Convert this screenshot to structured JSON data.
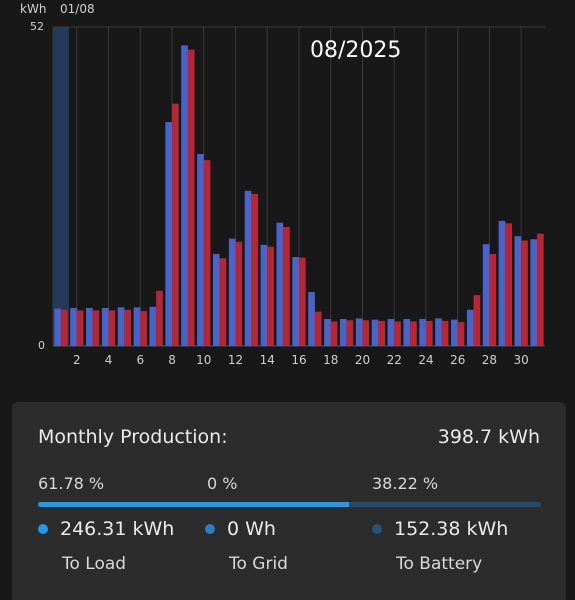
{
  "header": {
    "unit": "kWh",
    "date": "01/08",
    "period": "08/2025"
  },
  "chart_data": {
    "type": "bar",
    "ylim": [
      0,
      52
    ],
    "y_ticks": [
      "52",
      "0"
    ],
    "x_tick_labels": [
      "2",
      "4",
      "6",
      "8",
      "10",
      "12",
      "14",
      "16",
      "18",
      "20",
      "22",
      "24",
      "26",
      "28",
      "30"
    ],
    "categories": [
      "1",
      "2",
      "3",
      "4",
      "5",
      "6",
      "7",
      "8",
      "9",
      "10",
      "11",
      "12",
      "13",
      "14",
      "15",
      "16",
      "17",
      "18",
      "19",
      "20",
      "21",
      "22",
      "23",
      "24",
      "25",
      "26",
      "27",
      "28",
      "29",
      "30",
      "31"
    ],
    "selected_day": "1",
    "series": [
      {
        "color": "#4a63c9",
        "values": [
          6.1,
          6.2,
          6.2,
          6.2,
          6.3,
          6.3,
          6.4,
          36.5,
          49.0,
          31.3,
          15.0,
          17.5,
          25.3,
          16.5,
          20.1,
          14.5,
          8.8,
          4.4,
          4.4,
          4.5,
          4.3,
          4.4,
          4.4,
          4.4,
          4.5,
          4.3,
          5.9,
          16.6,
          20.4,
          17.9,
          17.4
        ]
      },
      {
        "color": "#b52636",
        "values": [
          5.9,
          5.8,
          5.8,
          5.8,
          5.9,
          5.7,
          9.0,
          39.5,
          48.3,
          30.3,
          14.3,
          17.0,
          24.8,
          16.2,
          19.4,
          14.4,
          5.6,
          4.0,
          4.2,
          4.2,
          4.1,
          4.0,
          4.0,
          4.1,
          4.1,
          3.9,
          8.3,
          15.0,
          20.0,
          17.2,
          18.3
        ]
      }
    ]
  },
  "summary": {
    "title": "Monthly Production:",
    "total": "398.7 kWh",
    "load_pct": "61.78 %",
    "grid_pct": "0 %",
    "battery_pct": "38.22 %",
    "load_fraction": 0.6178,
    "load_value": "246.31 kWh",
    "grid_value": "0 Wh",
    "battery_value": "152.38 kWh",
    "load_label": "To Load",
    "grid_label": "To Grid",
    "battery_label": "To Battery",
    "load_color": "#1e9af0",
    "grid_color": "#2a7fc0",
    "battery_color": "#23557a"
  }
}
